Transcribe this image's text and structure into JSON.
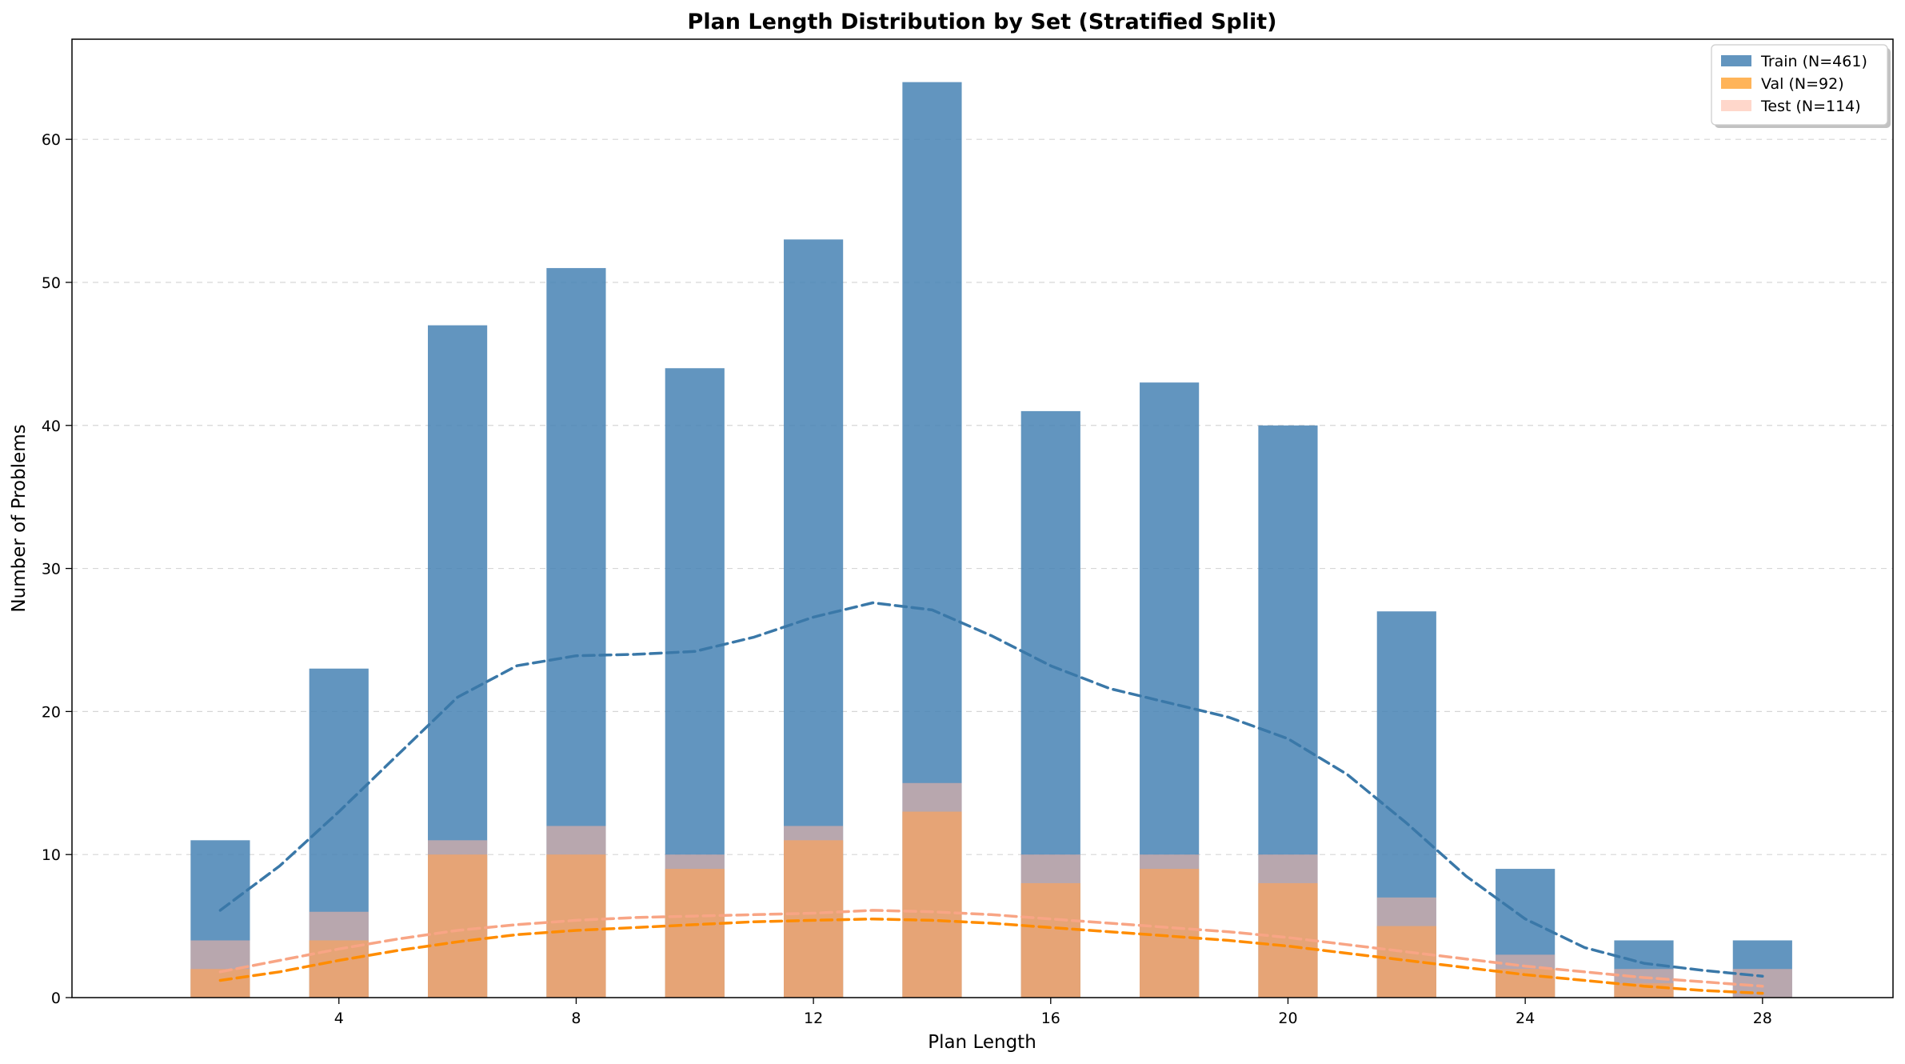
{
  "chart_data": {
    "type": "bar",
    "title": "Plan Length Distribution by Set (Stratified Split)",
    "xlabel": "Plan Length",
    "ylabel": "Number of Problems",
    "xlim": [
      -0.5,
      30.2
    ],
    "ylim": [
      0,
      67
    ],
    "xticks": [
      4,
      8,
      12,
      16,
      20,
      24,
      28
    ],
    "yticks": [
      0,
      10,
      20,
      30,
      40,
      50,
      60
    ],
    "grid": "y-dashed",
    "legend_position": "top-right",
    "categories": [
      2,
      4,
      6,
      8,
      10,
      12,
      14,
      16,
      18,
      20,
      22,
      24,
      26,
      28
    ],
    "series": [
      {
        "name": "Train (N=461)",
        "color": "#4682b4",
        "values": [
          11,
          23,
          47,
          51,
          44,
          53,
          64,
          41,
          43,
          40,
          27,
          9,
          4,
          4
        ],
        "trend_x": [
          2,
          3,
          4,
          5,
          6,
          7,
          8,
          9,
          10,
          11,
          12,
          13,
          14,
          15,
          16,
          17,
          18,
          19,
          20,
          21,
          22,
          23,
          24,
          25,
          26,
          27,
          28
        ],
        "trend_y": [
          6.1,
          9.2,
          13.0,
          17.0,
          21.0,
          23.2,
          23.9,
          24.0,
          24.2,
          25.2,
          26.6,
          27.6,
          27.1,
          25.3,
          23.2,
          21.6,
          20.6,
          19.6,
          18.1,
          15.6,
          12.2,
          8.5,
          5.5,
          3.5,
          2.4,
          1.9,
          1.5
        ]
      },
      {
        "name": "Val (N=92)",
        "color": "#ff8c00",
        "values": [
          2,
          4,
          10,
          10,
          9,
          11,
          13,
          8,
          9,
          8,
          5,
          2,
          1,
          0
        ],
        "trend_x": [
          2,
          3,
          4,
          5,
          6,
          7,
          8,
          9,
          10,
          11,
          12,
          13,
          14,
          15,
          16,
          17,
          18,
          19,
          20,
          21,
          22,
          23,
          24,
          25,
          26,
          27,
          28
        ],
        "trend_y": [
          1.2,
          1.8,
          2.6,
          3.3,
          3.9,
          4.4,
          4.7,
          4.9,
          5.1,
          5.3,
          5.4,
          5.5,
          5.4,
          5.2,
          4.9,
          4.6,
          4.3,
          4.0,
          3.6,
          3.1,
          2.6,
          2.1,
          1.6,
          1.2,
          0.8,
          0.5,
          0.3
        ]
      },
      {
        "name": "Test (N=114)",
        "color": "#ffb6a0",
        "values": [
          4,
          6,
          11,
          12,
          10,
          12,
          15,
          10,
          10,
          10,
          7,
          3,
          2,
          2
        ],
        "trend_x": [
          2,
          3,
          4,
          5,
          6,
          7,
          8,
          9,
          10,
          11,
          12,
          13,
          14,
          15,
          16,
          17,
          18,
          19,
          20,
          21,
          22,
          23,
          24,
          25,
          26,
          27,
          28
        ],
        "trend_y": [
          1.8,
          2.6,
          3.4,
          4.1,
          4.7,
          5.1,
          5.4,
          5.6,
          5.7,
          5.8,
          5.9,
          6.1,
          6.0,
          5.8,
          5.5,
          5.2,
          4.9,
          4.6,
          4.2,
          3.7,
          3.2,
          2.7,
          2.2,
          1.8,
          1.4,
          1.1,
          0.8
        ]
      }
    ]
  }
}
